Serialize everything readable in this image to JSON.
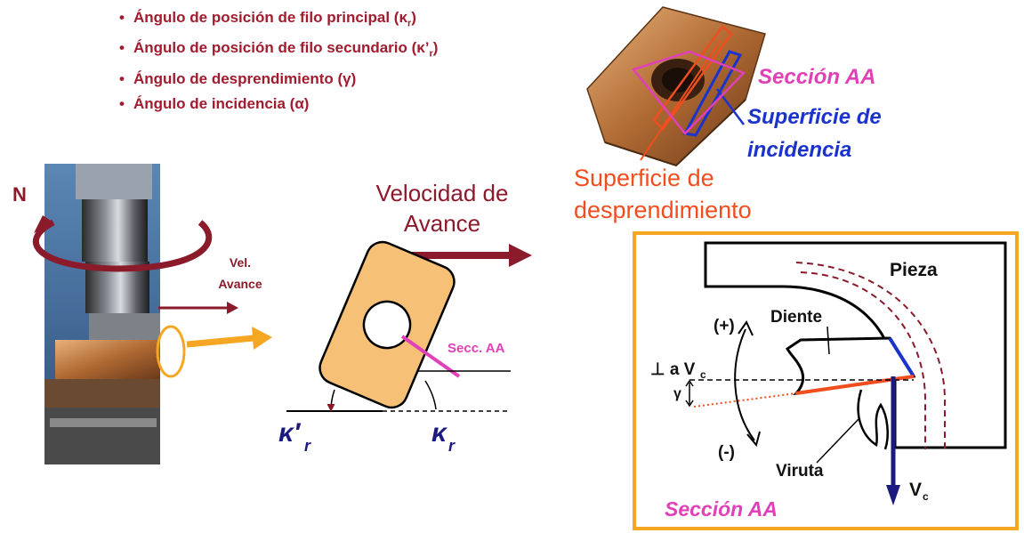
{
  "bullets": [
    {
      "text": "Ángulo de posición de filo principal (κ",
      "sub": "r",
      "tail": ")"
    },
    {
      "text": "Ángulo de posición de filo secundario (κ’",
      "sub": "r",
      "tail": ")"
    },
    {
      "text": "Ángulo de desprendimiento (γ)",
      "sub": "",
      "tail": ""
    },
    {
      "text": "Ángulo de incidencia (α)",
      "sub": "",
      "tail": ""
    }
  ],
  "photo": {
    "rotation_label": "N",
    "feed_label_line1": "Vel.",
    "feed_label_line2": "Avance"
  },
  "insert_diagram": {
    "feed_title_line1": "Velocidad de",
    "feed_title_line2": "Avance",
    "section_label": "Secc. AA",
    "kappa_r_prime": "κ′",
    "kappa_r": "κ",
    "subscript": "r"
  },
  "insert_photo": {
    "section_label": "Sección  AA",
    "clearance_label_line1": "Superficie de",
    "clearance_label_line2": "incidencia",
    "rake_label_line1": "Superficie de",
    "rake_label_line2": "desprendimiento"
  },
  "section_panel": {
    "workpiece": "Pieza",
    "tooth": "Diente",
    "plus": "(+)",
    "minus": "(-)",
    "perp_label": "⊥ a V",
    "perp_sub": "c",
    "gamma": "γ",
    "chip": "Viruta",
    "velocity": "V",
    "velocity_sub": "c",
    "title": "Sección  AA"
  },
  "colors": {
    "bullet_text": "#a01c2e",
    "dark_red": "#8b1a2b",
    "orange": "#f5a623",
    "magenta": "#e040b8",
    "blue": "#1a33cc",
    "rake_orange": "#f04e1e",
    "insert_fill": "#f6c077",
    "panel_border": "#f5a623"
  }
}
